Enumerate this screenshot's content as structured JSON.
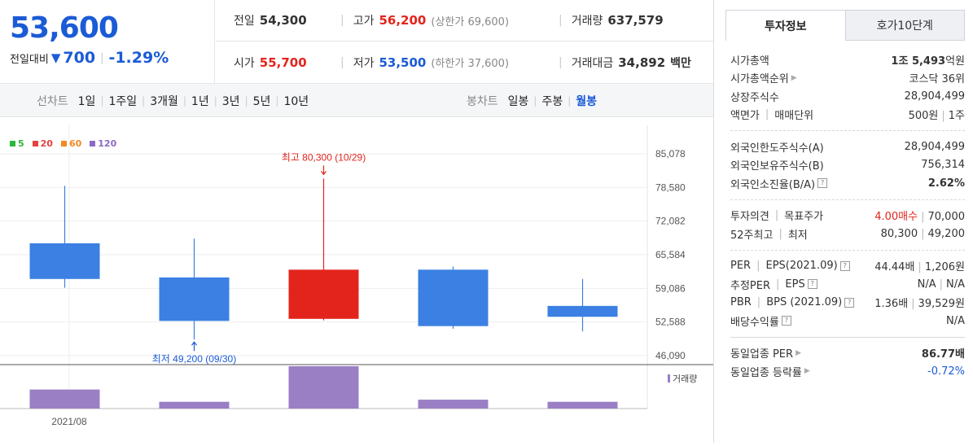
{
  "header": {
    "price": "53,600",
    "diff_label": "전일대비",
    "diff_arrow": "▼",
    "diff_amount": "700",
    "diff_pct": "-1.29%",
    "prev_label": "전일",
    "prev_value": "54,300",
    "high_label": "고가",
    "high_value": "56,200",
    "upper_limit": "(상한가 69,600)",
    "volume_label": "거래량",
    "volume_value": "637,579",
    "open_label": "시가",
    "open_value": "55,700",
    "low_label": "저가",
    "low_value": "53,500",
    "lower_limit": "(하한가 37,600)",
    "amount_label": "거래대금",
    "amount_value": "34,892",
    "amount_unit": "백만"
  },
  "period_bar": {
    "line_label": "선차트",
    "line_items": [
      "1일",
      "1주일",
      "3개월",
      "1년",
      "3년",
      "5년",
      "10년"
    ],
    "candle_label": "봉차트",
    "candle_items": [
      "일봉",
      "주봉",
      "월봉"
    ],
    "candle_active": "월봉"
  },
  "legend": [
    {
      "label": "5",
      "color": "#2db83a"
    },
    {
      "label": "20",
      "color": "#e84040"
    },
    {
      "label": "60",
      "color": "#f08a24"
    },
    {
      "label": "120",
      "color": "#8d6ac4"
    }
  ],
  "chart_data": {
    "type": "candlestick",
    "x_label": "2021/08",
    "y_ticks": [
      "85,078",
      "78,580",
      "72,082",
      "65,584",
      "59,086",
      "52,588",
      "46,090"
    ],
    "ylim": [
      46090,
      85078
    ],
    "candles": [
      {
        "open": 67800,
        "close": 60900,
        "high": 78900,
        "low": 59200,
        "dir": "down"
      },
      {
        "open": 61200,
        "close": 52800,
        "high": 68700,
        "low": 49200,
        "dir": "down"
      },
      {
        "open": 53200,
        "close": 62700,
        "high": 80300,
        "low": 52900,
        "dir": "up"
      },
      {
        "open": 62700,
        "close": 51800,
        "high": 63300,
        "low": 51300,
        "dir": "down"
      },
      {
        "open": 55700,
        "close": 53600,
        "high": 60900,
        "low": 50800,
        "dir": "down"
      }
    ],
    "volume_label": "거래량",
    "volumes": [
      0.45,
      0.16,
      1.0,
      0.21,
      0.16
    ],
    "max_annotation": "최고 80,300 (10/29)",
    "min_annotation": "최저 49,200 (09/30)",
    "colors": {
      "up": "#e3241d",
      "down": "#3b80e2",
      "volume": "#9a7fc5"
    }
  },
  "side": {
    "tab_active": "투자정보",
    "tab_inactive": "호가10단계",
    "rows": [
      {
        "k": "시가총액",
        "v1": "1조 ",
        "v2": "5,493",
        "v3": "억원"
      },
      {
        "k": "시가총액순위",
        "v": "코스닥 36위"
      },
      {
        "k": "상장주식수",
        "v": "28,904,499"
      },
      {
        "k1": "액면가",
        "k2": "매매단위",
        "v1": "500원",
        "v2": "1주"
      },
      {
        "k": "외국인한도주식수(A)",
        "v": "28,904,499"
      },
      {
        "k": "외국인보유주식수(B)",
        "v": "756,314"
      },
      {
        "k": "외국인소진율(B/A)",
        "v": "2.62%"
      },
      {
        "k1": "투자의견",
        "k2": "목표주가",
        "v1": "4.00매수",
        "v2": "70,000"
      },
      {
        "k1": "52주최고",
        "k2": "최저",
        "v1": "80,300",
        "v2": "49,200"
      },
      {
        "k1": "PER",
        "k2": "EPS(2021.09)",
        "v1": "44.44배",
        "v2": "1,206원"
      },
      {
        "k1": "추정PER",
        "k2": "EPS",
        "v1": "N/A",
        "v2": "N/A"
      },
      {
        "k1": "PBR",
        "k2": "BPS (2021.09)",
        "v1": "1.36배",
        "v2": "39,529원"
      },
      {
        "k": "배당수익률",
        "v": "N/A"
      },
      {
        "k": "동일업종 PER",
        "v": "86.77배"
      },
      {
        "k": "동일업종 등락률",
        "v": "-0.72%"
      }
    ]
  }
}
